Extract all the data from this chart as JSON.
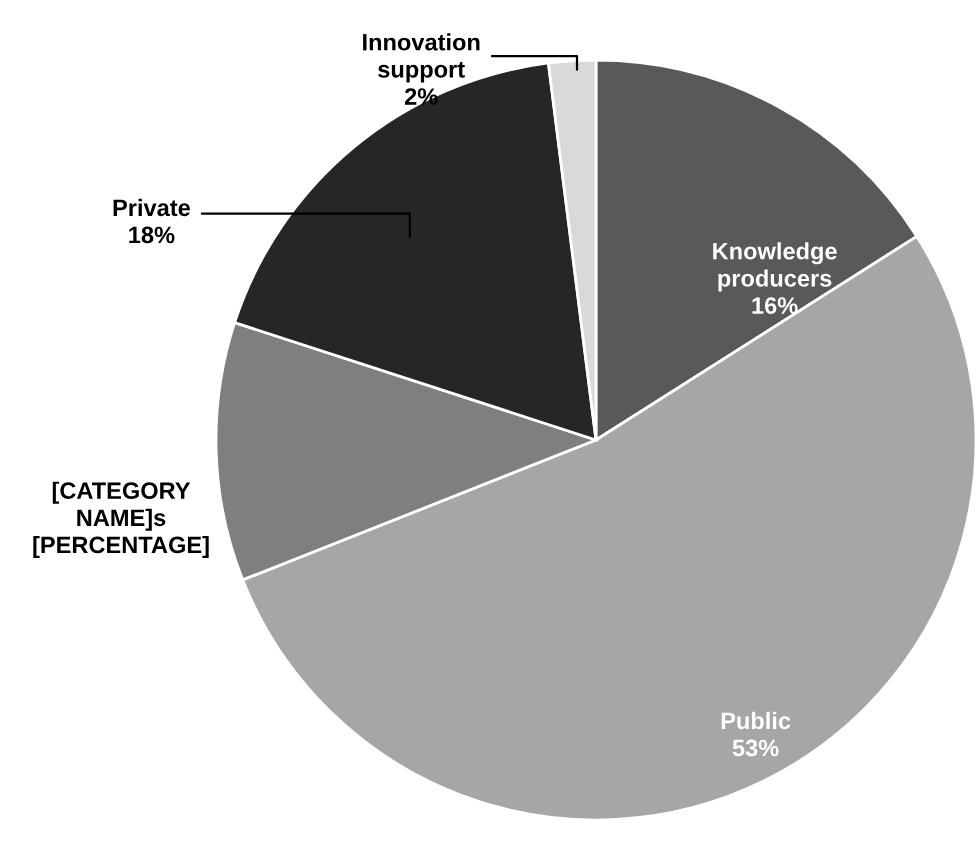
{
  "chart_data": {
    "type": "pie",
    "categories": [
      "Knowledge producers",
      "Public",
      "[CATEGORY NAME]s",
      "Private",
      "Innovation support"
    ],
    "values": [
      16,
      53,
      11,
      18,
      2
    ],
    "value_labels": [
      "16%",
      "53%",
      "[PERCENTAGE]",
      "18%",
      "2%"
    ],
    "colors": [
      "#595959",
      "#a6a6a6",
      "#7f7f7f",
      "#262626",
      "#d9d9d9"
    ],
    "legend": false
  }
}
